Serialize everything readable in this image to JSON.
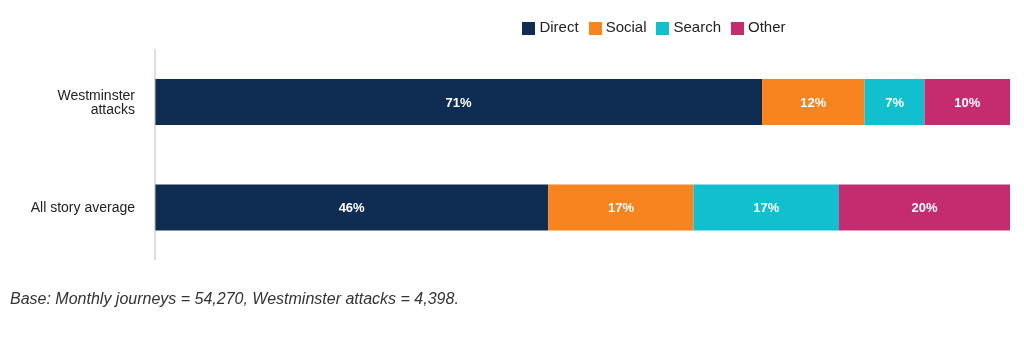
{
  "chart_data": {
    "type": "bar",
    "orientation": "horizontal",
    "stacked": true,
    "categories": [
      "Westminster attacks",
      "All story average"
    ],
    "series": [
      {
        "name": "Direct",
        "color": "#0f2d52",
        "values": [
          71,
          46
        ],
        "value_labels": [
          "71%",
          "46%"
        ]
      },
      {
        "name": "Social",
        "color": "#f7841e",
        "values": [
          12,
          17
        ],
        "value_labels": [
          "12%",
          "17%"
        ]
      },
      {
        "name": "Search",
        "color": "#12bfcf",
        "values": [
          7,
          17
        ],
        "value_labels": [
          "7%",
          "17%"
        ]
      },
      {
        "name": "Other",
        "color": "#c52c70",
        "values": [
          10,
          20
        ],
        "value_labels": [
          "10%",
          "20%"
        ]
      }
    ],
    "legend": "top",
    "tick_labels": "y",
    "annotations": [
      "Base: Monthly journeys = 54,270, Westminster attacks = 4,398."
    ]
  }
}
